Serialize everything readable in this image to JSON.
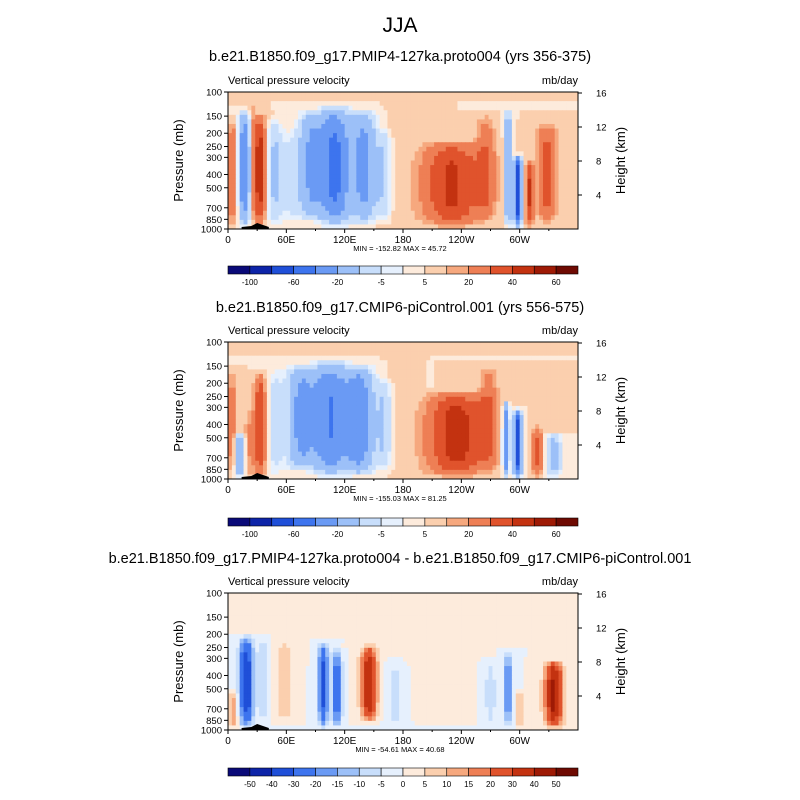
{
  "page": {
    "title": "JJA"
  },
  "colors": {
    "panel_a_scale": [
      "#0a0a78",
      "#0d24a8",
      "#1f4fd8",
      "#3d74ee",
      "#6a9af4",
      "#9cc0f8",
      "#c8defb",
      "#e6f0fd",
      "#fdebdc",
      "#fbcfae",
      "#f6a87e",
      "#ee7f55",
      "#e0532c",
      "#c33210",
      "#9e1a05",
      "#6e0a02"
    ],
    "panel_b_scale": [
      "#0a0a78",
      "#0d24a8",
      "#1f4fd8",
      "#3d74ee",
      "#6a9af4",
      "#9cc0f8",
      "#c8defb",
      "#e6f0fd",
      "#fdebdc",
      "#fbcfae",
      "#f6a87e",
      "#ee7f55",
      "#e0532c",
      "#c33210",
      "#9e1a05",
      "#6e0a02"
    ],
    "panel_c_scale": [
      "#0a0a78",
      "#0d24a8",
      "#1f4fd8",
      "#3d74ee",
      "#6a9af4",
      "#9cc0f8",
      "#c8defb",
      "#e6f0fd",
      "#fdebdc",
      "#fbcfae",
      "#f6a87e",
      "#ee7f55",
      "#e0532c",
      "#c33210",
      "#9e1a05",
      "#6e0a02"
    ]
  },
  "chart_data": [
    {
      "type": "heatmap",
      "title": "b.e21.B1850.f09_g17.PMIP4-127ka.proto004 (yrs 356-375)",
      "left_string": "Vertical pressure velocity",
      "right_string": "mb/day",
      "ylabel": "Pressure (mb)",
      "ylabel_right": "Height (km)",
      "x_ticks": [
        "0",
        "60E",
        "120E",
        "180",
        "120W",
        "60W"
      ],
      "x_tick_values": [
        0,
        60,
        120,
        180,
        240,
        300
      ],
      "xlim": [
        0,
        360
      ],
      "y_ticks": [
        "100",
        "150",
        "200",
        "250",
        "300",
        "400",
        "500",
        "700",
        "850",
        "1000"
      ],
      "y_tick_values": [
        100,
        150,
        200,
        250,
        300,
        400,
        500,
        700,
        850,
        1000
      ],
      "ylim": [
        1000,
        100
      ],
      "height_ticks": [
        "4",
        "8",
        "12",
        "16"
      ],
      "height_tick_values": [
        4,
        8,
        12,
        16
      ],
      "stats": "MIN = -152.82   MAX =  45.72",
      "colorbar_labels": [
        "-100",
        "-60",
        "-20",
        "-5",
        "5",
        "20",
        "40",
        "60"
      ],
      "contour_levels": [
        -140,
        -100,
        -80,
        -60,
        -40,
        -20,
        -10,
        -5,
        0,
        5,
        10,
        20,
        30,
        40,
        50,
        60
      ],
      "features": [
        {
          "lon": 5,
          "pmin": 150,
          "pmax": 1000,
          "width": 6,
          "value": 18
        },
        {
          "lon": 17,
          "pmin": 130,
          "pmax": 1000,
          "width": 6,
          "value": -60
        },
        {
          "lon": 25,
          "pmin": 110,
          "pmax": 1000,
          "width": 5,
          "value": 12
        },
        {
          "lon": 33,
          "pmin": 140,
          "pmax": 980,
          "width": 6,
          "value": 35
        },
        {
          "lon": 48,
          "pmin": 150,
          "pmax": 1000,
          "width": 8,
          "value": -22
        },
        {
          "lon": 65,
          "pmin": 180,
          "pmax": 950,
          "width": 10,
          "value": -12
        },
        {
          "lon": 85,
          "pmin": 130,
          "pmax": 900,
          "width": 12,
          "value": -40
        },
        {
          "lon": 110,
          "pmin": 120,
          "pmax": 1000,
          "width": 16,
          "value": -65
        },
        {
          "lon": 140,
          "pmin": 130,
          "pmax": 950,
          "width": 12,
          "value": -45
        },
        {
          "lon": 160,
          "pmin": 180,
          "pmax": 900,
          "width": 8,
          "value": -18
        },
        {
          "lon": 175,
          "pmin": 120,
          "pmax": 1000,
          "width": 8,
          "value": 4
        },
        {
          "lon": 230,
          "pmin": 220,
          "pmax": 1000,
          "width": 30,
          "value": 32
        },
        {
          "lon": 265,
          "pmin": 140,
          "pmax": 900,
          "width": 10,
          "value": 16
        },
        {
          "lon": 288,
          "pmin": 130,
          "pmax": 1000,
          "width": 3,
          "value": -55
        },
        {
          "lon": 298,
          "pmin": 280,
          "pmax": 1000,
          "width": 4,
          "value": -95
        },
        {
          "lon": 310,
          "pmin": 300,
          "pmax": 1000,
          "width": 4,
          "value": 30
        },
        {
          "lon": 328,
          "pmin": 160,
          "pmax": 950,
          "width": 10,
          "value": 24
        }
      ]
    },
    {
      "type": "heatmap",
      "title": "b.e21.B1850.f09_g17.CMIP6-piControl.001 (yrs 556-575)",
      "left_string": "Vertical pressure velocity",
      "right_string": "mb/day",
      "ylabel": "Pressure (mb)",
      "ylabel_right": "Height (km)",
      "x_ticks": [
        "0",
        "60E",
        "120E",
        "180",
        "120W",
        "60W"
      ],
      "x_tick_values": [
        0,
        60,
        120,
        180,
        240,
        300
      ],
      "xlim": [
        0,
        360
      ],
      "y_ticks": [
        "100",
        "150",
        "200",
        "250",
        "300",
        "400",
        "500",
        "700",
        "850",
        "1000"
      ],
      "y_tick_values": [
        100,
        150,
        200,
        250,
        300,
        400,
        500,
        700,
        850,
        1000
      ],
      "ylim": [
        1000,
        100
      ],
      "height_ticks": [
        "4",
        "8",
        "12",
        "16"
      ],
      "height_tick_values": [
        4,
        8,
        12,
        16
      ],
      "stats": "MIN = -155.03   MAX =  81.25",
      "colorbar_labels": [
        "-100",
        "-60",
        "-20",
        "-5",
        "5",
        "20",
        "40",
        "60"
      ],
      "contour_levels": [
        -140,
        -100,
        -80,
        -60,
        -40,
        -20,
        -10,
        -5,
        0,
        5,
        10,
        20,
        30,
        40,
        50,
        60
      ],
      "features": [
        {
          "lon": 4,
          "pmin": 150,
          "pmax": 1000,
          "width": 5,
          "value": 14
        },
        {
          "lon": 12,
          "pmin": 450,
          "pmax": 1000,
          "width": 5,
          "value": -35
        },
        {
          "lon": 22,
          "pmin": 300,
          "pmax": 1000,
          "width": 5,
          "value": 10
        },
        {
          "lon": 33,
          "pmin": 160,
          "pmax": 1000,
          "width": 6,
          "value": 30
        },
        {
          "lon": 48,
          "pmin": 150,
          "pmax": 1000,
          "width": 8,
          "value": -14
        },
        {
          "lon": 75,
          "pmin": 140,
          "pmax": 900,
          "width": 14,
          "value": -45
        },
        {
          "lon": 105,
          "pmin": 130,
          "pmax": 1000,
          "width": 18,
          "value": -60
        },
        {
          "lon": 135,
          "pmin": 140,
          "pmax": 980,
          "width": 14,
          "value": -55
        },
        {
          "lon": 160,
          "pmin": 180,
          "pmax": 900,
          "width": 8,
          "value": -20
        },
        {
          "lon": 175,
          "pmin": 120,
          "pmax": 1000,
          "width": 6,
          "value": 4
        },
        {
          "lon": 235,
          "pmin": 220,
          "pmax": 1000,
          "width": 30,
          "value": 35
        },
        {
          "lon": 268,
          "pmin": 140,
          "pmax": 900,
          "width": 10,
          "value": 15
        },
        {
          "lon": 286,
          "pmin": 260,
          "pmax": 1000,
          "width": 3,
          "value": -60
        },
        {
          "lon": 298,
          "pmin": 300,
          "pmax": 1000,
          "width": 4,
          "value": -100
        },
        {
          "lon": 318,
          "pmin": 400,
          "pmax": 1000,
          "width": 6,
          "value": 22
        },
        {
          "lon": 335,
          "pmin": 450,
          "pmax": 1000,
          "width": 8,
          "value": -25
        }
      ]
    },
    {
      "type": "heatmap",
      "title": "b.e21.B1850.f09_g17.PMIP4-127ka.proto004 - b.e21.B1850.f09_g17.CMIP6-piControl.001",
      "left_string": "Vertical pressure velocity",
      "right_string": "mb/day",
      "ylabel": "Pressure (mb)",
      "ylabel_right": "Height (km)",
      "x_ticks": [
        "0",
        "60E",
        "120E",
        "180",
        "120W",
        "60W"
      ],
      "x_tick_values": [
        0,
        60,
        120,
        180,
        240,
        300
      ],
      "xlim": [
        0,
        360
      ],
      "y_ticks": [
        "100",
        "150",
        "200",
        "250",
        "300",
        "400",
        "500",
        "700",
        "850",
        "1000"
      ],
      "y_tick_values": [
        100,
        150,
        200,
        250,
        300,
        400,
        500,
        700,
        850,
        1000
      ],
      "ylim": [
        1000,
        100
      ],
      "height_ticks": [
        "4",
        "8",
        "12",
        "16"
      ],
      "height_tick_values": [
        4,
        8,
        12,
        16
      ],
      "stats": "MIN = -54.61   MAX =  40.68",
      "colorbar_labels": [
        "-50",
        "-40",
        "-30",
        "-20",
        "-15",
        "-10",
        "-5",
        "0",
        "5",
        "10",
        "15",
        "20",
        "30",
        "40",
        "50"
      ],
      "contour_levels": [
        -50,
        -40,
        -30,
        -20,
        -15,
        -10,
        -5,
        0,
        5,
        10,
        15,
        20,
        30,
        40,
        50
      ],
      "features": [
        {
          "lon": 5,
          "pmin": 500,
          "pmax": 1000,
          "width": 5,
          "value": 14
        },
        {
          "lon": 19,
          "pmin": 200,
          "pmax": 1000,
          "width": 7,
          "value": -38
        },
        {
          "lon": 36,
          "pmin": 200,
          "pmax": 900,
          "width": 5,
          "value": -10
        },
        {
          "lon": 58,
          "pmin": 200,
          "pmax": 950,
          "width": 8,
          "value": 9
        },
        {
          "lon": 98,
          "pmin": 220,
          "pmax": 1000,
          "width": 5,
          "value": -32
        },
        {
          "lon": 112,
          "pmin": 250,
          "pmax": 1000,
          "width": 5,
          "value": -26
        },
        {
          "lon": 145,
          "pmin": 230,
          "pmax": 900,
          "width": 8,
          "value": 38
        },
        {
          "lon": 172,
          "pmin": 300,
          "pmax": 1000,
          "width": 10,
          "value": -7
        },
        {
          "lon": 215,
          "pmin": 200,
          "pmax": 900,
          "width": 20,
          "value": 5
        },
        {
          "lon": 270,
          "pmin": 300,
          "pmax": 1000,
          "width": 6,
          "value": -8
        },
        {
          "lon": 288,
          "pmin": 250,
          "pmax": 1000,
          "width": 4,
          "value": -22
        },
        {
          "lon": 300,
          "pmin": 500,
          "pmax": 1000,
          "width": 4,
          "value": 10
        },
        {
          "lon": 335,
          "pmin": 300,
          "pmax": 1000,
          "width": 9,
          "value": 42
        }
      ]
    }
  ]
}
